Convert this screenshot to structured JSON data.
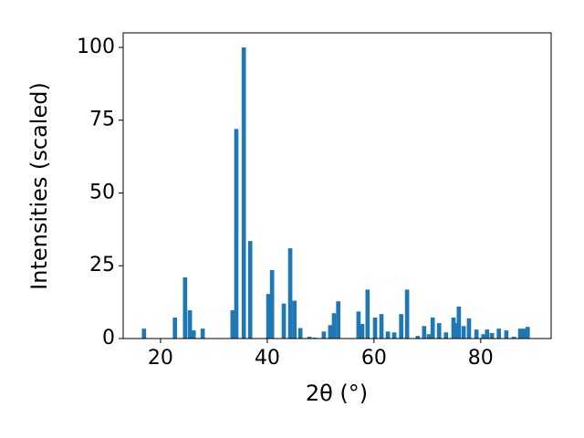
{
  "chart_data": {
    "type": "bar",
    "xlabel": "2θ (°)",
    "ylabel": "Intensities (scaled)",
    "x": [
      16.9,
      22.7,
      24.6,
      25.5,
      26.2,
      27.9,
      33.5,
      34.2,
      35.6,
      36.8,
      40.2,
      40.9,
      43.1,
      44.3,
      45.1,
      46.2,
      47.9,
      48.9,
      50.6,
      51.8,
      52.5,
      53.3,
      57.1,
      57.8,
      58.8,
      60.2,
      61.4,
      62.6,
      63.8,
      65.1,
      66.2,
      68.2,
      69.4,
      70.3,
      71.0,
      72.2,
      73.5,
      74.9,
      75.4,
      75.9,
      76.8,
      77.8,
      79.2,
      80.5,
      81.2,
      82.1,
      83.4,
      84.8,
      86.2,
      87.4,
      88.1,
      88.8
    ],
    "values": [
      3.4,
      7.2,
      21,
      9.7,
      2.8,
      3.4,
      9.7,
      72,
      100,
      33.5,
      15.3,
      23.5,
      12,
      31,
      13,
      3.6,
      0.6,
      0.3,
      2.4,
      4.6,
      8.7,
      12.8,
      9.3,
      5,
      16.8,
      7.2,
      8.4,
      2.4,
      2.1,
      8.4,
      16.8,
      0.9,
      4.3,
      1.5,
      7.2,
      5.3,
      2.1,
      7.2,
      5.3,
      11,
      4.3,
      6.9,
      3.1,
      1.5,
      3.1,
      1.9,
      3.4,
      2.8,
      0.6,
      3.4,
      3.4,
      4.0
    ],
    "color": "#1f77b4",
    "xlim": [
      13,
      93.2
    ],
    "xticks": [
      20,
      40,
      60,
      80
    ],
    "ylim": [
      0,
      105
    ],
    "yticks": [
      0,
      25,
      50,
      75,
      100
    ],
    "grid": false
  }
}
